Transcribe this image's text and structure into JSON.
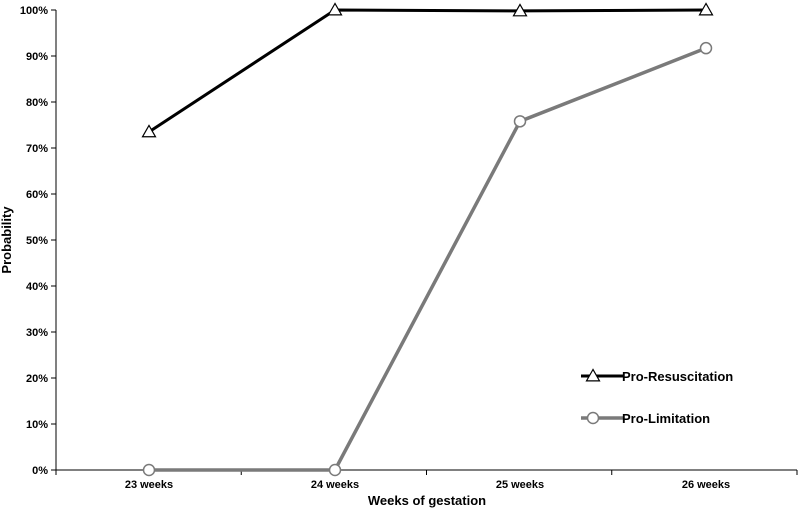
{
  "chart_data": {
    "type": "line",
    "title": "",
    "xlabel": "Weeks of gestation",
    "ylabel": "Probability",
    "categories": [
      "23 weeks",
      "24 weeks",
      "25 weeks",
      "26 weeks"
    ],
    "y_tick_labels": [
      "0%",
      "10%",
      "20%",
      "30%",
      "40%",
      "50%",
      "60%",
      "70%",
      "80%",
      "90%",
      "100%"
    ],
    "ylim": [
      0,
      1
    ],
    "grid": false,
    "legend_position": "bottom-right",
    "series": [
      {
        "name": "Pro-Resuscitation",
        "values": [
          0.735,
          1.0,
          0.998,
          1.0
        ],
        "marker": "triangle",
        "color": "#000000"
      },
      {
        "name": "Pro-Limitation",
        "values": [
          0.0,
          0.0,
          0.758,
          0.917
        ],
        "marker": "circle",
        "color": "#7a7a7a"
      }
    ]
  }
}
